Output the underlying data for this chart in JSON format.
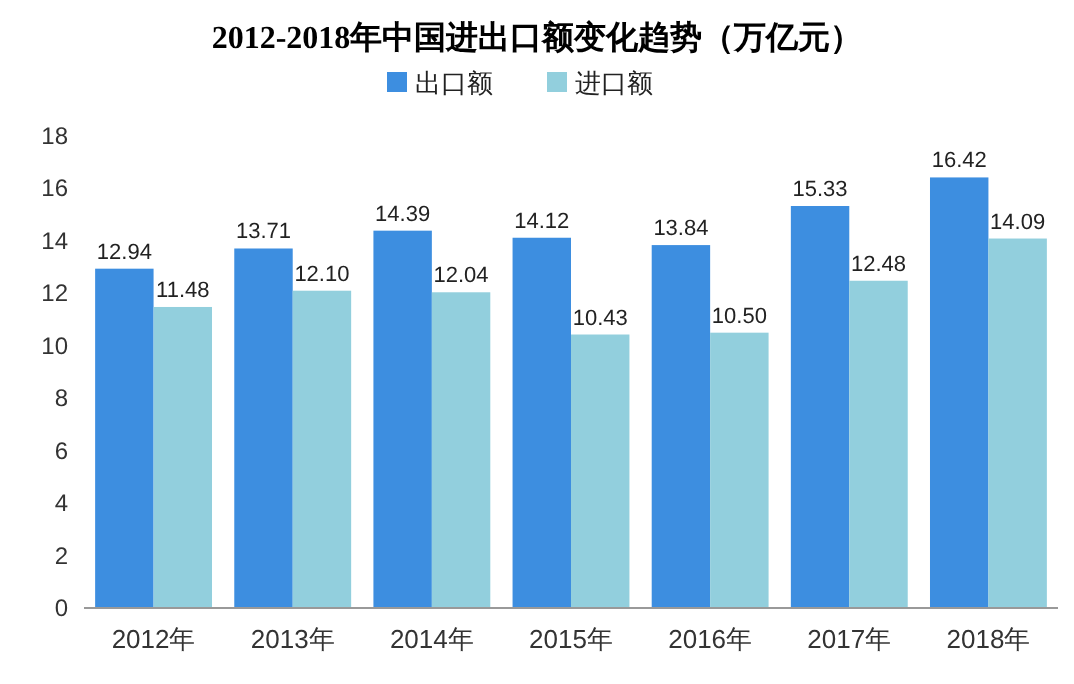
{
  "chart_data": {
    "type": "bar",
    "title": "2012-2018年中国进出口额变化趋势（万亿元）",
    "categories": [
      "2012年",
      "2013年",
      "2014年",
      "2015年",
      "2016年",
      "2017年",
      "2018年"
    ],
    "series": [
      {
        "name": "出口额",
        "color": "#3d8ee0",
        "values": [
          12.94,
          13.71,
          14.39,
          14.12,
          13.84,
          15.33,
          16.42
        ],
        "value_labels": [
          "12.94",
          "13.71",
          "14.39",
          "14.12",
          "13.84",
          "15.33",
          "16.42"
        ]
      },
      {
        "name": "进口额",
        "color": "#92cfdd",
        "values": [
          11.48,
          12.1,
          12.04,
          10.43,
          10.5,
          12.48,
          14.09
        ],
        "value_labels": [
          "11.48",
          "12.10",
          "12.04",
          "10.43",
          "10.50",
          "12.48",
          "14.09"
        ]
      }
    ],
    "ylim": [
      0,
      18
    ],
    "yticks": [
      0,
      2,
      4,
      6,
      8,
      10,
      12,
      14,
      16,
      18
    ],
    "grid": false,
    "legend": "top"
  }
}
